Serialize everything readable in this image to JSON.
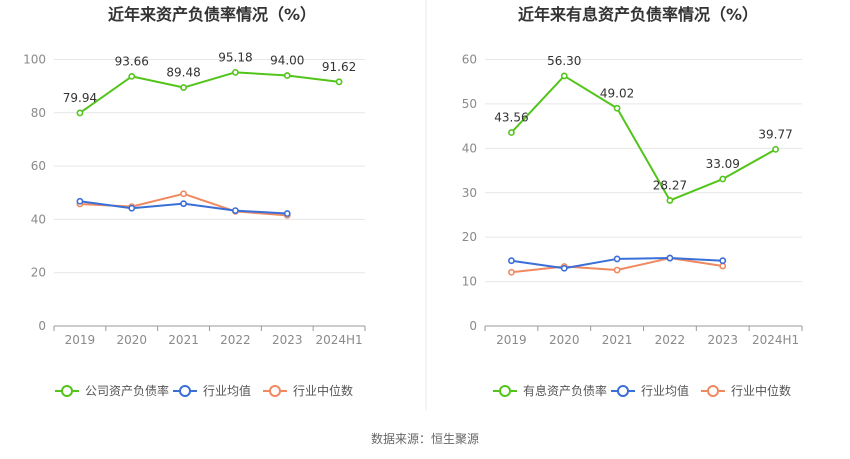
{
  "source_label": "数据来源：恒生聚源",
  "chart_data": [
    {
      "type": "line",
      "title": "近年来资产负债率情况（%）",
      "categories": [
        "2019",
        "2020",
        "2021",
        "2022",
        "2023",
        "2024H1"
      ],
      "ylim": [
        0,
        100
      ],
      "yticks": [
        0,
        20,
        40,
        60,
        80,
        100
      ],
      "grid": true,
      "legend_position": "bottom",
      "series": [
        {
          "name": "公司资产负债率",
          "color": "#52c41a",
          "values": [
            79.94,
            93.66,
            89.48,
            95.18,
            94.0,
            91.62
          ],
          "labels": [
            "79.94",
            "93.66",
            "89.48",
            "95.18",
            "94.00",
            "91.62"
          ]
        },
        {
          "name": "行业均值",
          "color": "#3a6fd8",
          "values": [
            46.8,
            44.2,
            45.9,
            43.3,
            42.2,
            null
          ]
        },
        {
          "name": "行业中位数",
          "color": "#f08860",
          "values": [
            45.8,
            44.8,
            49.6,
            43.0,
            41.5,
            null
          ]
        }
      ]
    },
    {
      "type": "line",
      "title": "近年来有息资产负债率情况（%）",
      "categories": [
        "2019",
        "2020",
        "2021",
        "2022",
        "2023",
        "2024H1"
      ],
      "ylim": [
        0,
        60
      ],
      "yticks": [
        0,
        10,
        20,
        30,
        40,
        50,
        60
      ],
      "grid": true,
      "legend_position": "bottom",
      "series": [
        {
          "name": "有息资产负债率",
          "color": "#52c41a",
          "values": [
            43.56,
            56.3,
            49.02,
            28.27,
            33.09,
            39.77
          ],
          "labels": [
            "43.56",
            "56.30",
            "49.02",
            "28.27",
            "33.09",
            "39.77"
          ]
        },
        {
          "name": "行业均值",
          "color": "#3a6fd8",
          "values": [
            14.7,
            13.0,
            15.1,
            15.3,
            14.7,
            null
          ]
        },
        {
          "name": "行业中位数",
          "color": "#f08860",
          "values": [
            12.1,
            13.4,
            12.6,
            15.3,
            13.5,
            null
          ]
        }
      ]
    }
  ]
}
